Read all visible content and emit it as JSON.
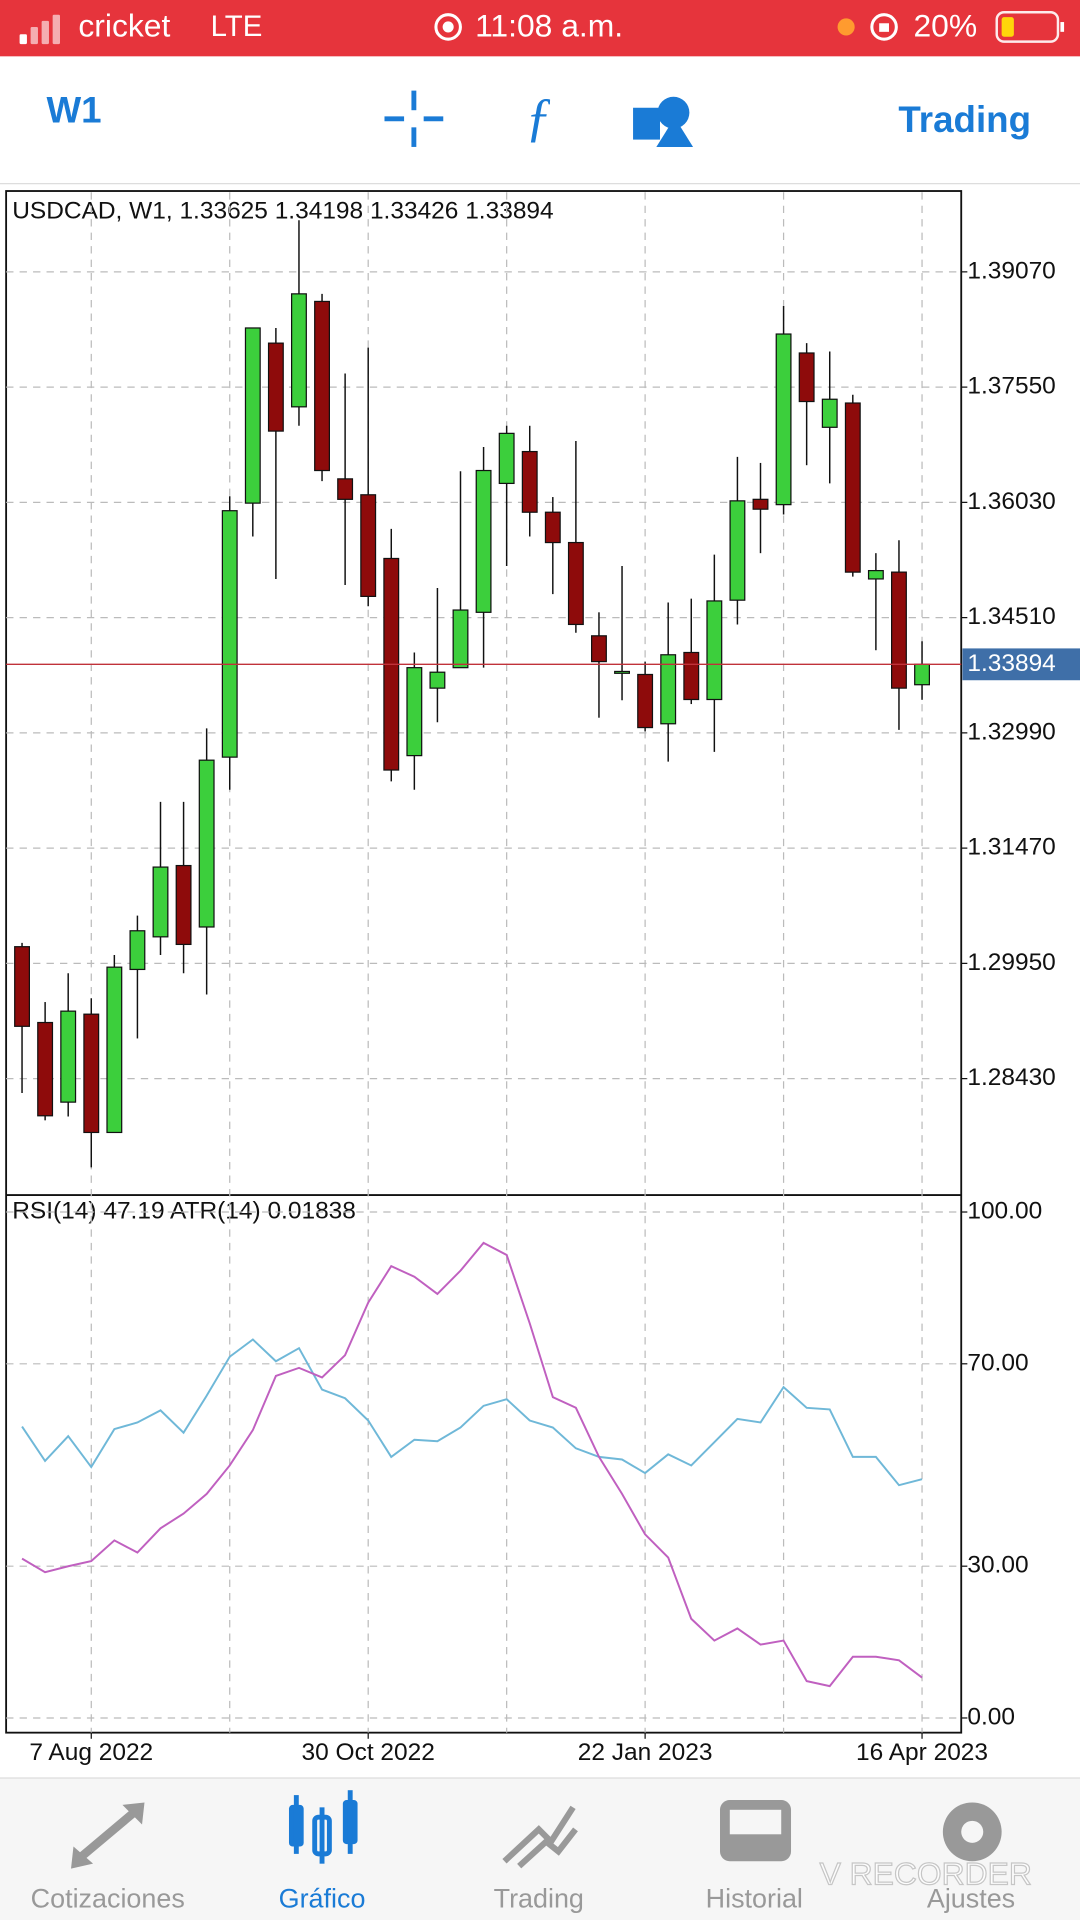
{
  "status_bar": {
    "carrier": "cricket",
    "network": "LTE",
    "time": "11:08 a.m.",
    "battery": "20%"
  },
  "toolbar": {
    "timeframe": "W1",
    "trading": "Trading"
  },
  "chart_data": [
    {
      "type": "candlestick",
      "title": "USDCAD, W1, 1.33625 1.34198 1.33426 1.33894",
      "categories": [
        null,
        null,
        null,
        "7 Aug 2022",
        null,
        null,
        null,
        null,
        null,
        null,
        null,
        null,
        null,
        null,
        null,
        "30 Oct 2022",
        null,
        null,
        null,
        null,
        null,
        null,
        null,
        null,
        null,
        null,
        null,
        "22 Jan 2023",
        null,
        null,
        null,
        null,
        null,
        null,
        null,
        null,
        null,
        null,
        null,
        "16 Apr 2023"
      ],
      "open": [
        1.3017,
        1.2917,
        1.2812,
        1.2928,
        1.2772,
        1.2987,
        1.303,
        1.3124,
        1.3043,
        1.3267,
        1.3602,
        1.3813,
        1.3729,
        1.3868,
        1.3634,
        1.3613,
        1.3529,
        1.3269,
        1.3358,
        1.3385,
        1.3458,
        1.3628,
        1.367,
        1.359,
        1.355,
        1.3427,
        1.3379,
        1.3376,
        1.3311,
        1.3405,
        1.3343,
        1.3474,
        1.3607,
        1.36,
        1.38,
        1.3702,
        1.3734,
        1.3502,
        1.3511,
        1.33625
      ],
      "high": [
        1.3022,
        1.2944,
        1.2982,
        1.2949,
        1.3006,
        1.3058,
        1.3208,
        1.3208,
        1.3305,
        1.3611,
        1.3833,
        1.3833,
        1.3975,
        1.3878,
        1.3773,
        1.3807,
        1.3568,
        1.3405,
        1.349,
        1.3644,
        1.3676,
        1.3704,
        1.3704,
        1.361,
        1.3684,
        1.3458,
        1.3519,
        1.3393,
        1.3471,
        1.3476,
        1.3534,
        1.3663,
        1.3655,
        1.3862,
        1.3813,
        1.3802,
        1.3745,
        1.3536,
        1.3553,
        1.34198
      ],
      "low": [
        1.2824,
        1.2788,
        1.2793,
        1.2726,
        1.2772,
        1.2896,
        1.3006,
        1.2982,
        1.2954,
        1.3224,
        1.3558,
        1.3502,
        1.3704,
        1.3631,
        1.3494,
        1.3466,
        1.3235,
        1.3224,
        1.3313,
        1.3385,
        1.3385,
        1.3519,
        1.3558,
        1.3482,
        1.3431,
        1.3319,
        1.3342,
        1.3301,
        1.3261,
        1.3337,
        1.3274,
        1.3442,
        1.3536,
        1.3587,
        1.3652,
        1.3628,
        1.3505,
        1.3408,
        1.3303,
        1.33426
      ],
      "close": [
        1.2912,
        1.2794,
        1.2932,
        1.2772,
        1.299,
        1.3038,
        1.3122,
        1.302,
        1.3263,
        1.3592,
        1.3833,
        1.3697,
        1.3878,
        1.3645,
        1.3607,
        1.3479,
        1.325,
        1.3385,
        1.3379,
        1.3461,
        1.3645,
        1.3694,
        1.359,
        1.355,
        1.3442,
        1.3393,
        1.338,
        1.3306,
        1.3402,
        1.3343,
        1.3473,
        1.3605,
        1.3594,
        1.3825,
        1.3736,
        1.3739,
        1.3511,
        1.3513,
        1.3358,
        1.33894
      ],
      "up_color": "#3ccf3c",
      "down_color": "#8e0b0b",
      "last_price_color": "#c0323a",
      "ylim": [
        1.2691,
        1.4012
      ],
      "yticks": [
        {
          "value": 1.3907,
          "label": "1.39070"
        },
        {
          "value": 1.3755,
          "label": "1.37550"
        },
        {
          "value": 1.3603,
          "label": "1.36030"
        },
        {
          "value": 1.3451,
          "label": "1.34510"
        },
        {
          "value": 1.3299,
          "label": "1.32990"
        },
        {
          "value": 1.3147,
          "label": "1.31470"
        },
        {
          "value": 1.2995,
          "label": "1.29950"
        },
        {
          "value": 1.2843,
          "label": "1.28430"
        }
      ],
      "grid": true
    },
    {
      "type": "line",
      "title": "RSI(14) 47.19 ATR(14) 0.01838",
      "series": [
        {
          "color": "#6fb8d8",
          "values": [
            57.6,
            50.8,
            55.7,
            49.6,
            57.1,
            58.4,
            60.8,
            56.4,
            63.7,
            71.4,
            74.8,
            70.5,
            73.1,
            64.9,
            63.2,
            58.8,
            51.6,
            55.0,
            54.7,
            57.4,
            61.7,
            63.0,
            58.8,
            57.4,
            53.3,
            51.6,
            51.1,
            48.4,
            52.1,
            49.9,
            54.5,
            59.1,
            58.4,
            65.4,
            61.3,
            61.0,
            51.6,
            51.6,
            46.0,
            47.19
          ]
        },
        {
          "color": "#c060c0",
          "values": [
            31.5,
            28.8,
            30.0,
            31.0,
            35.1,
            32.7,
            37.5,
            40.4,
            44.3,
            49.9,
            56.9,
            67.6,
            69.2,
            67.3,
            71.7,
            82.1,
            89.3,
            87.2,
            83.8,
            88.4,
            93.9,
            91.5,
            78.0,
            63.4,
            61.3,
            51.6,
            44.3,
            36.3,
            31.7,
            19.6,
            15.3,
            17.7,
            14.5,
            15.3,
            7.3,
            6.3,
            12.1,
            12.1,
            11.4,
            8.0
          ]
        }
      ],
      "ylim": [
        -2.9,
        103.1
      ],
      "yticks": [
        {
          "value": 100,
          "label": "100.00"
        },
        {
          "value": 70,
          "label": "70.00"
        },
        {
          "value": 30,
          "label": "30.00"
        },
        {
          "value": 0,
          "label": "0.00"
        }
      ],
      "grid": true
    }
  ],
  "tabs": [
    "Cotizaciones",
    "Gráfico",
    "Trading",
    "Historial",
    "Ajustes"
  ],
  "watermark": "V RECORDER"
}
